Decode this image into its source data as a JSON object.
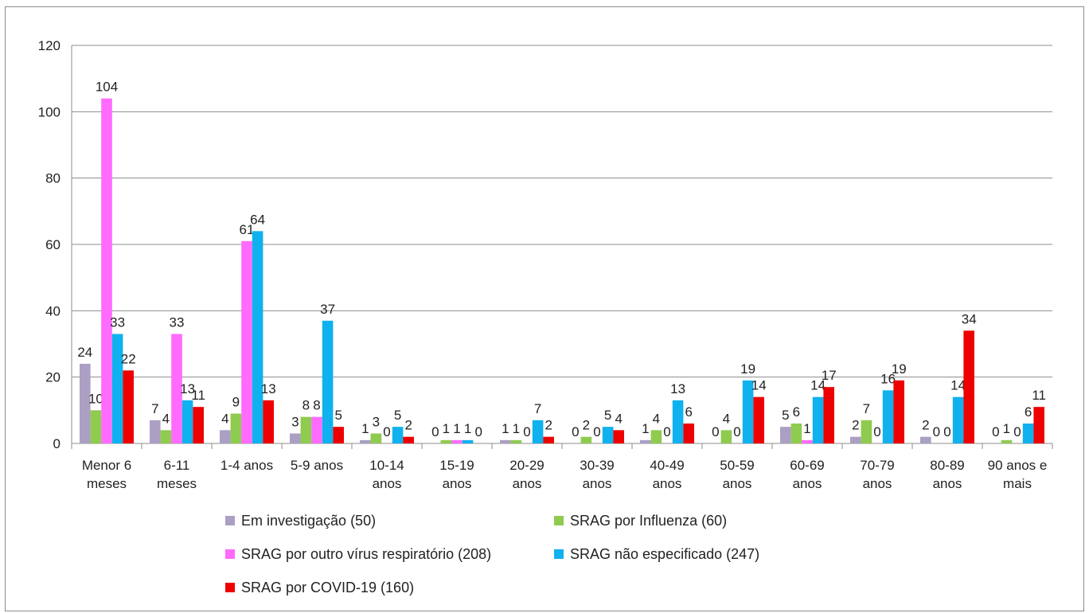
{
  "chart_data": {
    "type": "bar",
    "title": "",
    "xlabel": "",
    "ylabel": "",
    "ylim": [
      0,
      120
    ],
    "yticks": [
      0,
      20,
      40,
      60,
      80,
      100,
      120
    ],
    "grid": true,
    "legend_position": "bottom",
    "categories": [
      [
        "Menor 6",
        "meses"
      ],
      [
        "6-11",
        "meses"
      ],
      [
        "1-4 anos"
      ],
      [
        "5-9 anos"
      ],
      [
        "10-14",
        "anos"
      ],
      [
        "15-19",
        "anos"
      ],
      [
        "20-29",
        "anos"
      ],
      [
        "30-39",
        "anos"
      ],
      [
        "40-49",
        "anos"
      ],
      [
        "50-59",
        "anos"
      ],
      [
        "60-69",
        "anos"
      ],
      [
        "70-79",
        "anos"
      ],
      [
        "80-89",
        "anos"
      ],
      [
        "90 anos e",
        "mais"
      ]
    ],
    "series": [
      {
        "name": "Em investigação (50)",
        "color": "#ab9fc4",
        "values": [
          24,
          7,
          4,
          3,
          1,
          0,
          1,
          0,
          1,
          0,
          5,
          2,
          2,
          0
        ]
      },
      {
        "name": "SRAG por Influenza (60)",
        "color": "#8fcb4f",
        "values": [
          10,
          4,
          9,
          8,
          3,
          1,
          1,
          2,
          4,
          4,
          6,
          7,
          0,
          1
        ]
      },
      {
        "name": "SRAG por outro vírus respiratório (208)",
        "color": "#ff6bff",
        "values": [
          104,
          33,
          61,
          8,
          0,
          1,
          0,
          0,
          0,
          0,
          1,
          0,
          0,
          0
        ]
      },
      {
        "name": "SRAG não especificado (247)",
        "color": "#0fb1ee",
        "values": [
          33,
          13,
          64,
          37,
          5,
          1,
          7,
          5,
          13,
          19,
          14,
          16,
          14,
          6
        ]
      },
      {
        "name": "SRAG por COVID-19 (160)",
        "color": "#ee0000",
        "values": [
          22,
          11,
          13,
          5,
          2,
          0,
          2,
          4,
          6,
          14,
          17,
          19,
          34,
          11
        ]
      }
    ]
  }
}
